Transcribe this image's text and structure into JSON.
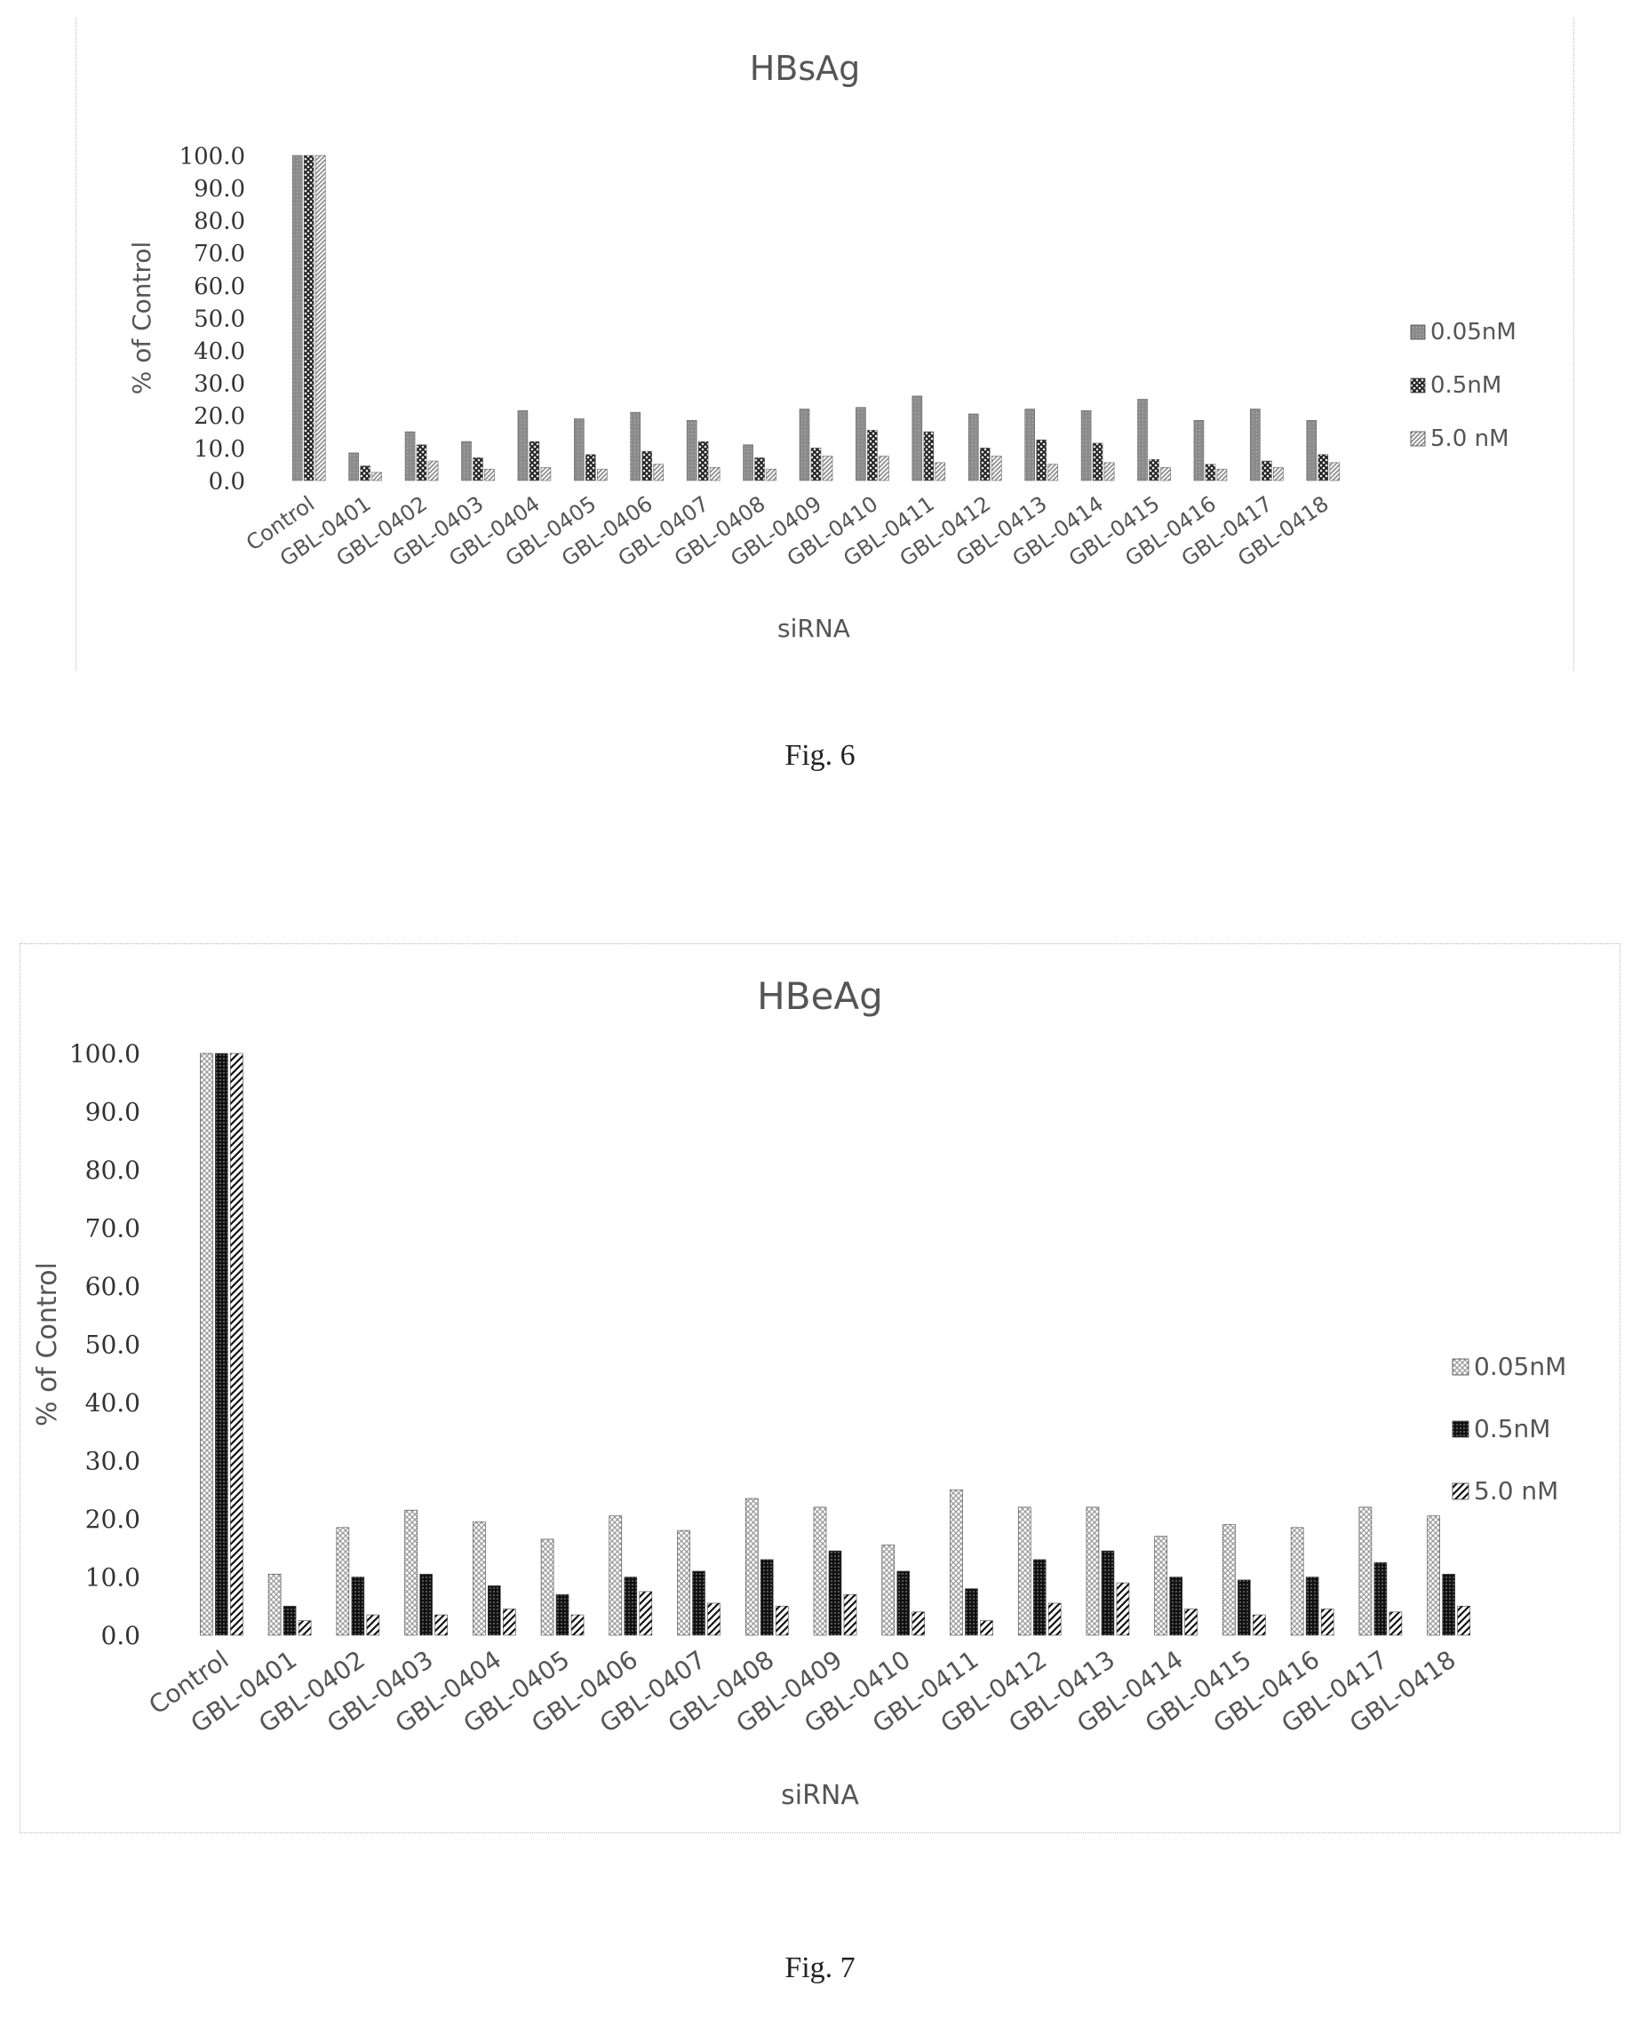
{
  "figures": [
    {
      "caption": "Fig. 6"
    },
    {
      "caption": "Fig. 7"
    }
  ],
  "chart_data": [
    {
      "type": "bar",
      "title": "HBsAg",
      "xlabel": "siRNA",
      "ylabel": "% of Control",
      "ylim": [
        0,
        100
      ],
      "yticks": [
        "0.0",
        "10.0",
        "20.0",
        "30.0",
        "40.0",
        "50.0",
        "60.0",
        "70.0",
        "80.0",
        "90.0",
        "100.0"
      ],
      "grid": false,
      "legend_position": "right",
      "categories": [
        "Control",
        "GBL-0401",
        "GBL-0402",
        "GBL-0403",
        "GBL-0404",
        "GBL-0405",
        "GBL-0406",
        "GBL-0407",
        "GBL-0408",
        "GBL-0409",
        "GBL-0410",
        "GBL-0411",
        "GBL-0412",
        "GBL-0413",
        "GBL-0414",
        "GBL-0415",
        "GBL-0416",
        "GBL-0417",
        "GBL-0418"
      ],
      "series": [
        {
          "name": "0.05nM",
          "pattern": "solid-gray",
          "values": [
            100.0,
            8.5,
            15.0,
            12.0,
            21.5,
            19.0,
            21.0,
            18.5,
            11.0,
            22.0,
            22.5,
            26.0,
            20.5,
            22.0,
            21.5,
            25.0,
            18.5,
            22.0,
            18.5
          ]
        },
        {
          "name": "0.5nM",
          "pattern": "dark-crosshatch",
          "values": [
            100.0,
            4.5,
            11.0,
            7.0,
            12.0,
            8.0,
            9.0,
            12.0,
            7.0,
            10.0,
            15.5,
            15.0,
            10.0,
            12.5,
            11.5,
            6.5,
            5.0,
            6.0,
            8.0
          ]
        },
        {
          "name": "5.0 nM",
          "pattern": "light-diagonal",
          "values": [
            100.0,
            2.5,
            6.0,
            3.5,
            4.0,
            3.5,
            5.0,
            4.0,
            3.5,
            7.5,
            7.5,
            5.5,
            7.5,
            5.0,
            5.5,
            4.0,
            3.5,
            4.0,
            5.5
          ]
        }
      ]
    },
    {
      "type": "bar",
      "title": "HBeAg",
      "xlabel": "siRNA",
      "ylabel": "% of Control",
      "ylim": [
        0,
        100
      ],
      "yticks": [
        "0.0",
        "10.0",
        "20.0",
        "30.0",
        "40.0",
        "50.0",
        "60.0",
        "70.0",
        "80.0",
        "90.0",
        "100.0"
      ],
      "grid": false,
      "legend_position": "right",
      "categories": [
        "Control",
        "GBL-0401",
        "GBL-0402",
        "GBL-0403",
        "GBL-0404",
        "GBL-0405",
        "GBL-0406",
        "GBL-0407",
        "GBL-0408",
        "GBL-0409",
        "GBL-0410",
        "GBL-0411",
        "GBL-0412",
        "GBL-0413",
        "GBL-0414",
        "GBL-0415",
        "GBL-0416",
        "GBL-0417",
        "GBL-0418"
      ],
      "series": [
        {
          "name": "0.05nM",
          "pattern": "light-crosshatch",
          "values": [
            100.0,
            10.5,
            18.5,
            21.5,
            19.5,
            16.5,
            20.5,
            18.0,
            23.5,
            22.0,
            15.5,
            25.0,
            22.0,
            22.0,
            17.0,
            19.0,
            18.5,
            22.0,
            20.5
          ]
        },
        {
          "name": "0.5nM",
          "pattern": "dark-checker",
          "values": [
            100.0,
            5.0,
            10.0,
            10.5,
            8.5,
            7.0,
            10.0,
            11.0,
            13.0,
            14.5,
            11.0,
            8.0,
            13.0,
            14.5,
            10.0,
            9.5,
            10.0,
            12.5,
            10.5
          ]
        },
        {
          "name": "5.0 nM",
          "pattern": "bold-diagonal",
          "values": [
            100.0,
            2.5,
            3.5,
            3.5,
            4.5,
            3.5,
            7.5,
            5.5,
            5.0,
            7.0,
            4.0,
            2.5,
            5.5,
            9.0,
            4.5,
            3.5,
            4.5,
            4.0,
            5.0
          ]
        }
      ]
    }
  ]
}
